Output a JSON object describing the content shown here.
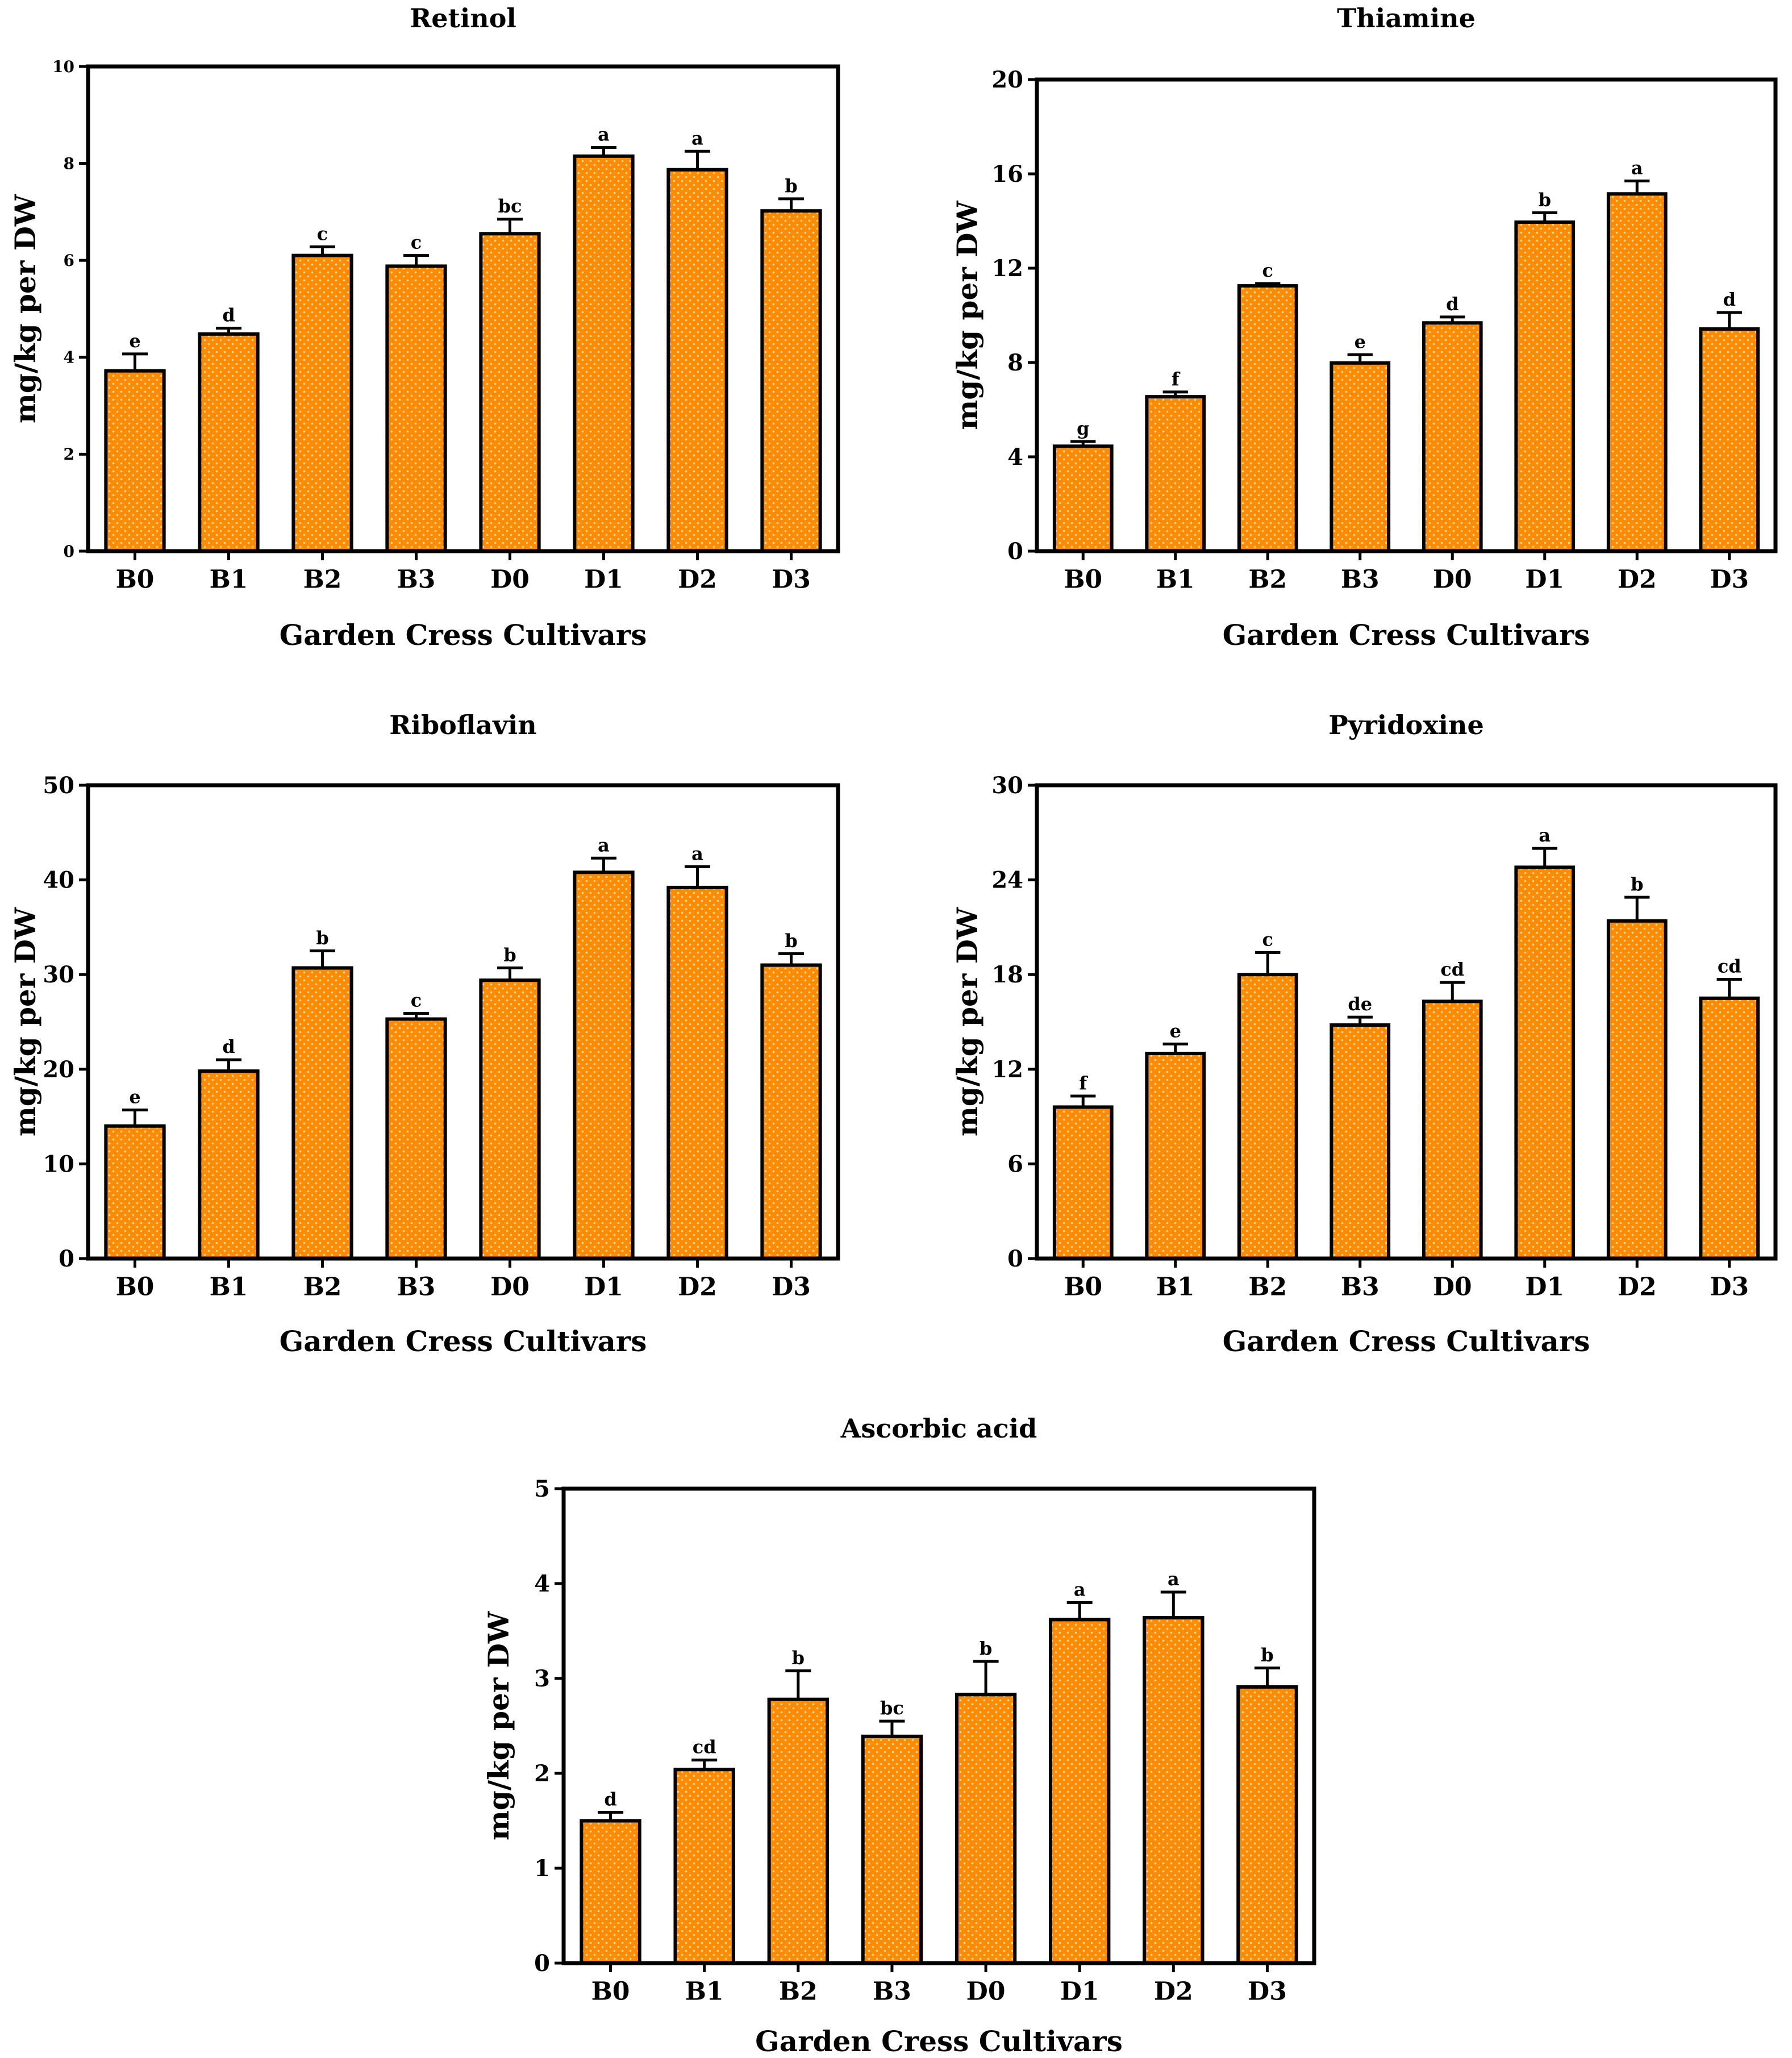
{
  "colors": {
    "bar": "#ff8c00",
    "bar_dots": "#ffd9a6",
    "axis": "#000000"
  },
  "chart_data": [
    {
      "type": "bar",
      "title": "Retinol",
      "xlabel": "Garden Cress Cultivars",
      "ylabel": "mg/kg per DW",
      "ylim": [
        0,
        10
      ],
      "yticks": [
        "0",
        "2",
        "4",
        "6",
        "8",
        "10"
      ],
      "categories": [
        "B0",
        "B1",
        "B2",
        "B3",
        "D0",
        "D1",
        "D2",
        "D3"
      ],
      "values": [
        3.72,
        4.48,
        6.1,
        5.88,
        6.55,
        8.15,
        7.87,
        7.02
      ],
      "errors": [
        0.35,
        0.12,
        0.18,
        0.22,
        0.3,
        0.18,
        0.38,
        0.25
      ],
      "letters": [
        "e",
        "d",
        "c",
        "c",
        "bc",
        "a",
        "a",
        "b"
      ]
    },
    {
      "type": "bar",
      "title": "Thiamine",
      "xlabel": "Garden Cress Cultivars",
      "ylabel": "mg/kg per DW",
      "ylim": [
        0,
        20
      ],
      "yticks": [
        "0",
        "4",
        "8",
        "12",
        "16",
        "20"
      ],
      "categories": [
        "B0",
        "B1",
        "B2",
        "B3",
        "D0",
        "D1",
        "D2",
        "D3"
      ],
      "values": [
        4.45,
        6.55,
        11.25,
        7.98,
        9.68,
        13.95,
        15.15,
        9.42
      ],
      "errors": [
        0.2,
        0.2,
        0.1,
        0.35,
        0.25,
        0.4,
        0.55,
        0.7
      ],
      "letters": [
        "g",
        "f",
        "c",
        "e",
        "d",
        "b",
        "a",
        "d"
      ]
    },
    {
      "type": "bar",
      "title": "Riboflavin",
      "xlabel": "Garden Cress Cultivars",
      "ylabel": "mg/kg per DW",
      "ylim": [
        0,
        50
      ],
      "yticks": [
        "0",
        "10",
        "20",
        "30",
        "40",
        "50"
      ],
      "categories": [
        "B0",
        "B1",
        "B2",
        "B3",
        "D0",
        "D1",
        "D2",
        "D3"
      ],
      "values": [
        14.0,
        19.8,
        30.7,
        25.3,
        29.4,
        40.8,
        39.2,
        31.0
      ],
      "errors": [
        1.7,
        1.2,
        1.8,
        0.6,
        1.3,
        1.5,
        2.2,
        1.2
      ],
      "letters": [
        "e",
        "d",
        "b",
        "c",
        "b",
        "a",
        "a",
        "b"
      ]
    },
    {
      "type": "bar",
      "title": "Pyridoxine",
      "xlabel": "Garden Cress Cultivars",
      "ylabel": "mg/kg per DW",
      "ylim": [
        0,
        30
      ],
      "yticks": [
        "0",
        "6",
        "12",
        "18",
        "24",
        "30"
      ],
      "categories": [
        "B0",
        "B1",
        "B2",
        "B3",
        "D0",
        "D1",
        "D2",
        "D3"
      ],
      "values": [
        9.6,
        13.0,
        18.0,
        14.8,
        16.3,
        24.8,
        21.4,
        16.5
      ],
      "errors": [
        0.7,
        0.6,
        1.4,
        0.5,
        1.2,
        1.2,
        1.5,
        1.2
      ],
      "letters": [
        "f",
        "e",
        "c",
        "de",
        "cd",
        "a",
        "b",
        "cd"
      ]
    },
    {
      "type": "bar",
      "title": "Ascorbic acid",
      "xlabel": "Garden Cress Cultivars",
      "ylabel": "mg/kg per DW",
      "ylim": [
        0,
        5
      ],
      "yticks": [
        "0",
        "1",
        "2",
        "3",
        "4",
        "5"
      ],
      "categories": [
        "B0",
        "B1",
        "B2",
        "B3",
        "D0",
        "D1",
        "D2",
        "D3"
      ],
      "values": [
        1.5,
        2.04,
        2.78,
        2.39,
        2.83,
        3.62,
        3.64,
        2.91
      ],
      "errors": [
        0.09,
        0.1,
        0.3,
        0.16,
        0.35,
        0.18,
        0.27,
        0.2
      ],
      "letters": [
        "d",
        "cd",
        "b",
        "bc",
        "b",
        "a",
        "a",
        "b"
      ]
    }
  ]
}
